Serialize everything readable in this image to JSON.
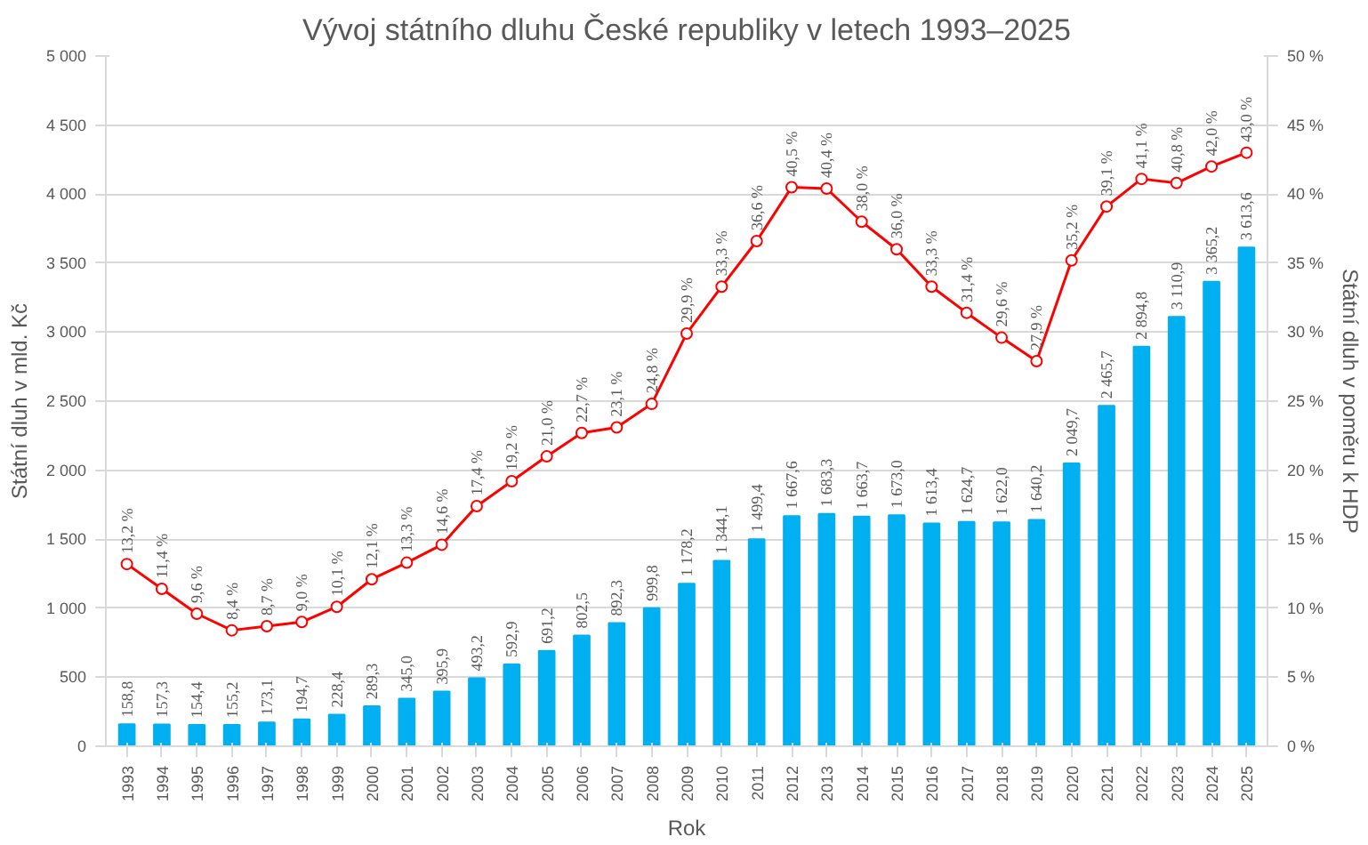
{
  "chart_data": {
    "type": "bar",
    "title": "Vývoj státního dluhu České republiky v letech 1993–2025",
    "xlabel": "Rok",
    "ylabel": "Státní dluh v mld. Kč",
    "y2label": "Státní dluh v poměru k HDP",
    "categories": [
      "1993",
      "1994",
      "1995",
      "1996",
      "1997",
      "1998",
      "1999",
      "2000",
      "2001",
      "2002",
      "2003",
      "2004",
      "2005",
      "2006",
      "2007",
      "2008",
      "2009",
      "2010",
      "2011",
      "2012",
      "2013",
      "2014",
      "2015",
      "2016",
      "2017",
      "2018",
      "2019",
      "2020",
      "2021",
      "2022",
      "2023",
      "2024",
      "2025"
    ],
    "series": [
      {
        "color": "#00b0f0",
        "values": [
          158.8,
          157.3,
          154.4,
          155.2,
          173.1,
          194.7,
          228.4,
          289.3,
          345.0,
          395.9,
          493.2,
          592.9,
          691.2,
          802.5,
          892.3,
          999.8,
          1178.2,
          1344.1,
          1499.4,
          1667.6,
          1683.3,
          1663.7,
          1673.0,
          1613.4,
          1624.7,
          1622.0,
          1640.2,
          2049.7,
          2465.7,
          2894.8,
          3110.9,
          3365.2,
          3613.6
        ],
        "value_labels": [
          "158,8",
          "157,3",
          "154,4",
          "155,2",
          "173,1",
          "194,7",
          "228,4",
          "289,3",
          "345,0",
          "395,9",
          "493,2",
          "592,9",
          "691,2",
          "802,5",
          "892,3",
          "999,8",
          "1 178,2",
          "1 344,1",
          "1 499,4",
          "1 667,6",
          "1 683,3",
          "1 663,7",
          "1 673,0",
          "1 613,4",
          "1 624,7",
          "1 622,0",
          "1 640,2",
          "2 049,7",
          "2 465,7",
          "2 894,8",
          "3 110,9",
          "3 365,2",
          "3 613,6"
        ]
      },
      {
        "type": "line",
        "axis": "y2",
        "color": "#ff0000",
        "marker": "circle",
        "line_style": "solid",
        "values": [
          13.2,
          11.4,
          9.6,
          8.4,
          8.7,
          9.0,
          10.1,
          12.1,
          13.3,
          14.6,
          17.4,
          19.2,
          21.0,
          22.7,
          23.1,
          24.8,
          29.9,
          33.3,
          36.6,
          40.5,
          40.4,
          38.0,
          36.0,
          33.3,
          31.4,
          29.6,
          27.9,
          35.2,
          39.1,
          41.1,
          40.8,
          42.0,
          43.0
        ],
        "value_labels": [
          "13,2 %",
          "11,4 %",
          "9,6 %",
          "8,4 %",
          "8,7 %",
          "9,0 %",
          "10,1 %",
          "12,1 %",
          "13,3 %",
          "14,6 %",
          "17,4 %",
          "19,2 %",
          "21,0 %",
          "22,7 %",
          "23,1 %",
          "24,8 %",
          "29,9 %",
          "33,3 %",
          "36,6 %",
          "40,5 %",
          "40,4 %",
          "38,0 %",
          "36,0 %",
          "33,3 %",
          "31,4 %",
          "29,6 %",
          "27,9 %",
          "35,2 %",
          "39,1 %",
          "41,1 %",
          "40,8 %",
          "42,0 %",
          "43,0 %"
        ]
      }
    ],
    "ylim": [
      0,
      5000
    ],
    "yticks": [
      0,
      500,
      {
        "value": 1000,
        "label": "1 000"
      },
      {
        "value": 1500,
        "label": "1 500"
      },
      {
        "value": 2000,
        "label": "2 000"
      },
      {
        "value": 2500,
        "label": "2 500"
      },
      {
        "value": 3000,
        "label": "3 000"
      },
      {
        "value": 3500,
        "label": "3 500"
      },
      {
        "value": 4000,
        "label": "4 000"
      },
      {
        "value": 4500,
        "label": "4 500"
      },
      {
        "value": 5000,
        "label": "5 000"
      }
    ],
    "y2lim": [
      0,
      50
    ],
    "y2ticks": [
      {
        "value": 0,
        "label": "0 %"
      },
      {
        "value": 5,
        "label": "5 %"
      },
      {
        "value": 10,
        "label": "10 %"
      },
      {
        "value": 15,
        "label": "15 %"
      },
      {
        "value": 20,
        "label": "20 %"
      },
      {
        "value": 25,
        "label": "25 %"
      },
      {
        "value": 30,
        "label": "30 %"
      },
      {
        "value": 35,
        "label": "35 %"
      },
      {
        "value": 40,
        "label": "40 %"
      },
      {
        "value": 45,
        "label": "45 %"
      },
      {
        "value": 50,
        "label": "50 %"
      }
    ],
    "grid": "y"
  }
}
